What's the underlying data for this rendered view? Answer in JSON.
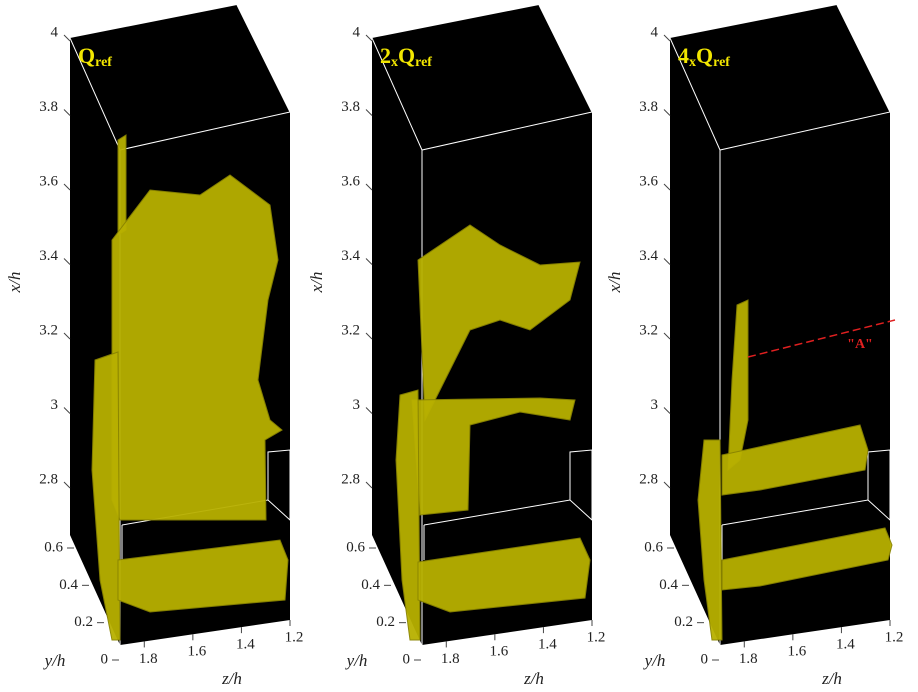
{
  "axes": {
    "x_label": "x/h",
    "y_label": "y/h",
    "z_label": "z/h",
    "x_ticks": [
      2.8,
      3,
      3.2,
      3.4,
      3.6,
      3.8,
      4
    ],
    "y_ticks": [
      0,
      0.2,
      0.4,
      0.6
    ],
    "z_ticks": [
      1.8,
      1.6,
      1.4,
      1.2
    ]
  },
  "panels": [
    {
      "label_parts": [
        {
          "text": "Q",
          "small": false
        },
        {
          "text": "ref",
          "small": true
        }
      ]
    },
    {
      "label_parts": [
        {
          "text": "2",
          "small": false
        },
        {
          "text": "x",
          "small": true
        },
        {
          "text": "Q",
          "small": false
        },
        {
          "text": "ref",
          "small": true
        }
      ]
    },
    {
      "label_parts": [
        {
          "text": "4",
          "small": false
        },
        {
          "text": "x",
          "small": true
        },
        {
          "text": "Q",
          "small": false
        },
        {
          "text": "ref",
          "small": true
        }
      ],
      "annotation": "\"A\""
    }
  ]
}
